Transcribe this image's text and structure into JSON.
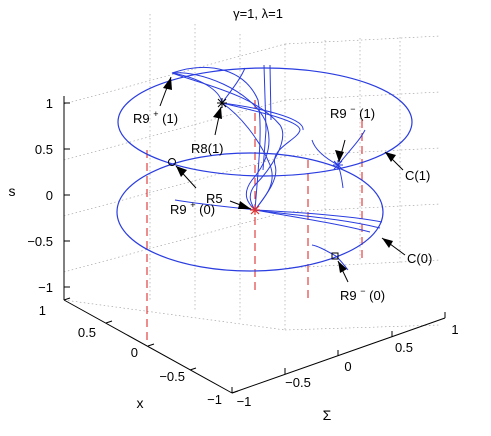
{
  "title": "γ=1, λ=1",
  "axes": {
    "s_label": "s",
    "x_label": "x",
    "sigma_label": "Σ",
    "s_ticks": [
      "1",
      "0.5",
      "0",
      "−0.5",
      "−1"
    ],
    "x_ticks": [
      "1",
      "0.5",
      "0",
      "−0.5",
      "−1"
    ],
    "sigma_ticks": [
      "−1",
      "−0.5",
      "0",
      "0.5",
      "1"
    ]
  },
  "annotations": {
    "r9p1": {
      "base": "R9",
      "sup": "+",
      "tail": "(1)"
    },
    "r81": {
      "text": "R8(1)"
    },
    "r9m1": {
      "base": "R9",
      "sup": "−",
      "tail": "(1)"
    },
    "c1": {
      "text": "C(1)"
    },
    "r9p0": {
      "base": "R9",
      "sup": "+",
      "tail": "(0)"
    },
    "r5": {
      "text": "R5"
    },
    "c0": {
      "text": "C(0)"
    },
    "r9m0": {
      "base": "R9",
      "sup": "−",
      "tail": "(0)"
    }
  },
  "colors": {
    "curves": "#2a3de0",
    "dashed_lines": "#e03030",
    "r5_marker": "#e03030"
  }
}
